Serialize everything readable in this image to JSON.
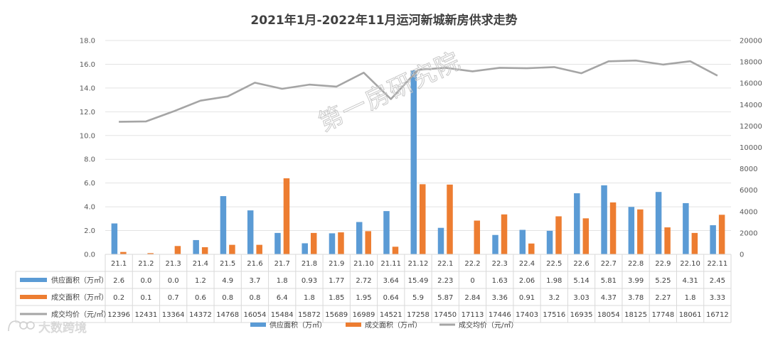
{
  "chart_data": {
    "type": "bar",
    "title": "2021年1月-2022年11月运河新城新房供求走势",
    "categories": [
      "21.1",
      "21.2",
      "21.3",
      "21.4",
      "21.5",
      "21.6",
      "21.7",
      "21.8",
      "21.9",
      "21.10",
      "21.11",
      "21.12",
      "22.1",
      "22.2",
      "22.3",
      "22.4",
      "22.5",
      "22.6",
      "22.7",
      "22.8",
      "22.9",
      "22.10",
      "22.11"
    ],
    "y_left": {
      "min": 0,
      "max": 18,
      "step": 2,
      "ticks": [
        "0.0",
        "2.0",
        "4.0",
        "6.0",
        "8.0",
        "10.0",
        "12.0",
        "14.0",
        "16.0",
        "18.0"
      ]
    },
    "y_right": {
      "min": 0,
      "max": 20000,
      "step": 2000,
      "ticks": [
        "0",
        "2000",
        "4000",
        "6000",
        "8000",
        "10000",
        "12000",
        "14000",
        "16000",
        "18000",
        "20000"
      ]
    },
    "grid": true,
    "legend_position": "bottom",
    "series": [
      {
        "name": "供应面积（万㎡）",
        "kind": "bar",
        "axis": "left",
        "color": "#5b9bd5",
        "values": [
          2.6,
          0.0,
          0.0,
          1.2,
          4.9,
          3.7,
          1.8,
          0.93,
          1.77,
          2.72,
          3.64,
          15.49,
          2.23,
          0,
          1.63,
          2.06,
          1.98,
          5.14,
          5.81,
          3.99,
          5.25,
          4.31,
          2.45
        ],
        "labels": [
          "2.6",
          "0.0",
          "0.0",
          "1.2",
          "4.9",
          "3.7",
          "1.8",
          "0.93",
          "1.77",
          "2.72",
          "3.64",
          "15.49",
          "2.23",
          "0",
          "1.63",
          "2.06",
          "1.98",
          "5.14",
          "5.81",
          "3.99",
          "5.25",
          "4.31",
          "2.45"
        ]
      },
      {
        "name": "成交面积（万㎡）",
        "kind": "bar",
        "axis": "left",
        "color": "#ed7d31",
        "values": [
          0.2,
          0.1,
          0.7,
          0.6,
          0.8,
          0.8,
          6.4,
          1.8,
          1.85,
          1.95,
          0.64,
          5.9,
          5.87,
          2.84,
          3.36,
          0.91,
          3.2,
          3.03,
          4.37,
          3.78,
          2.27,
          1.8,
          3.33
        ],
        "labels": [
          "0.2",
          "0.1",
          "0.7",
          "0.6",
          "0.8",
          "0.8",
          "6.4",
          "1.8",
          "1.85",
          "1.95",
          "0.64",
          "5.9",
          "5.87",
          "2.84",
          "3.36",
          "0.91",
          "3.2",
          "3.03",
          "4.37",
          "3.78",
          "2.27",
          "1.8",
          "3.33"
        ]
      },
      {
        "name": "成交均价（元/㎡）",
        "kind": "line",
        "axis": "right",
        "color": "#a5a5a5",
        "values": [
          12396,
          12431,
          13364,
          14372,
          14768,
          16054,
          15484,
          15872,
          15689,
          16989,
          14521,
          17258,
          17450,
          17113,
          17446,
          17403,
          17516,
          16935,
          18054,
          18125,
          17748,
          18061,
          16712
        ],
        "labels": [
          "12396",
          "12431",
          "13364",
          "14372",
          "14768",
          "16054",
          "15484",
          "15872",
          "15689",
          "16989",
          "14521",
          "17258",
          "17450",
          "17113",
          "17446",
          "17403",
          "17516",
          "16935",
          "18054",
          "18125",
          "17748",
          "18061",
          "16712"
        ]
      }
    ]
  },
  "watermark": "第一房研究院",
  "brand": "大数跨境",
  "brand_icon": "brand-logo-icon"
}
